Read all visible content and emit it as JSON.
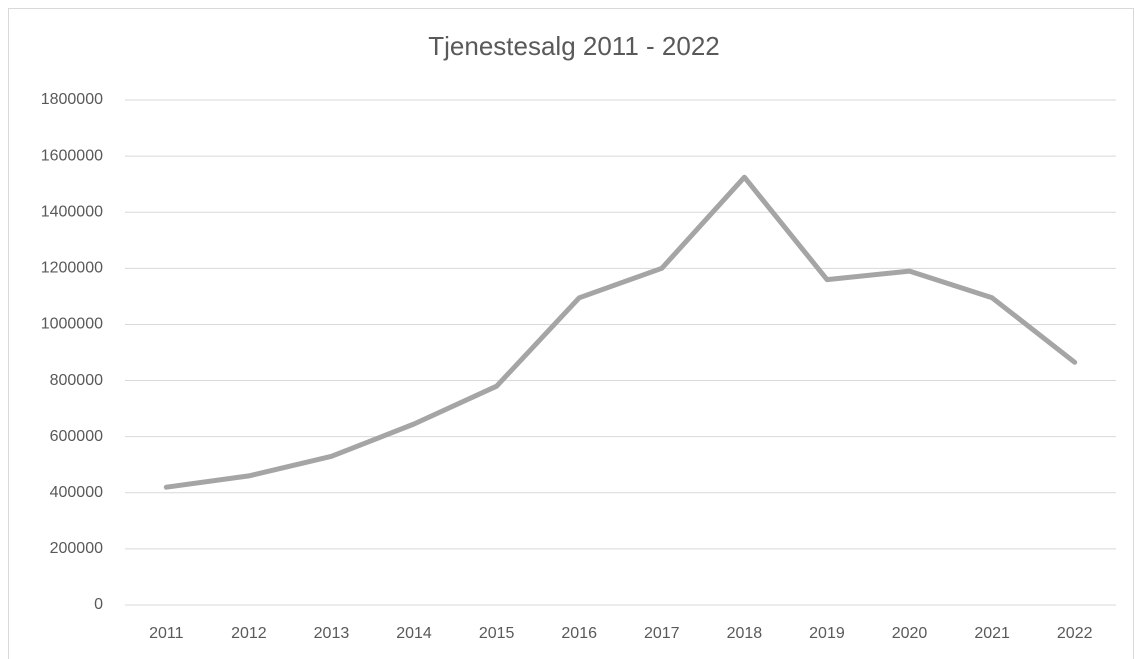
{
  "chart_data": {
    "type": "line",
    "title": "Tjenestesalg 2011 - 2022",
    "categories": [
      "2011",
      "2012",
      "2013",
      "2014",
      "2015",
      "2016",
      "2017",
      "2018",
      "2019",
      "2020",
      "2021",
      "2022"
    ],
    "values": [
      420000,
      460000,
      530000,
      645000,
      780000,
      1095000,
      1200000,
      1525000,
      1160000,
      1190000,
      1095000,
      865000
    ],
    "color": "#a5a5a5",
    "ylim": [
      0,
      1800000
    ],
    "yticks": [
      0,
      200000,
      400000,
      600000,
      800000,
      1000000,
      1200000,
      1400000,
      1600000,
      1800000
    ],
    "grid": true
  }
}
